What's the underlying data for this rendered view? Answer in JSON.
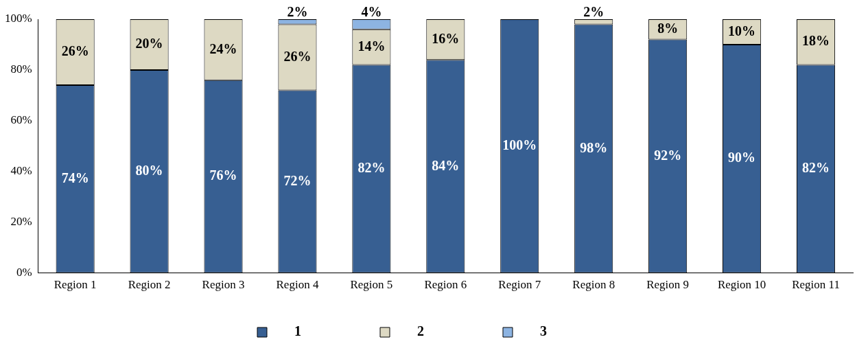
{
  "chart_data": {
    "type": "bar",
    "stacked": true,
    "legend": "bottom",
    "grid": false,
    "categories": [
      "Region 1",
      "Region 2",
      "Region 3",
      "Region 4",
      "Region 5",
      "Region 6",
      "Region 7",
      "Region 8",
      "Region 9",
      "Region 10",
      "Region 11"
    ],
    "ylim": [
      0,
      100
    ],
    "yticks": [
      {
        "value": 0,
        "label": "0%"
      },
      {
        "value": 20,
        "label": "20%"
      },
      {
        "value": 40,
        "label": "40%"
      },
      {
        "value": 60,
        "label": "60%"
      },
      {
        "value": 80,
        "label": "80%"
      },
      {
        "value": 100,
        "label": "100%"
      }
    ],
    "series": [
      {
        "name": "1",
        "color": "#375f92",
        "values": [
          74,
          80,
          76,
          72,
          82,
          84,
          100,
          98,
          92,
          90,
          82
        ],
        "value_labels": [
          "74%",
          "80%",
          "76%",
          "72%",
          "82%",
          "84%",
          "100%",
          "98%",
          "92%",
          "90%",
          "82%"
        ]
      },
      {
        "name": "2",
        "color": "#ddd9c3",
        "values": [
          26,
          20,
          24,
          26,
          14,
          16,
          null,
          2,
          8,
          10,
          18
        ],
        "value_labels": [
          "26%",
          "20%",
          "24%",
          "26%",
          "14%",
          "16%",
          null,
          "2%",
          "8%",
          "10%",
          "18%"
        ]
      },
      {
        "name": "3",
        "color": "#8db4e2",
        "values": [
          null,
          null,
          null,
          2,
          4,
          null,
          null,
          null,
          null,
          null,
          null
        ],
        "value_labels": [
          null,
          null,
          null,
          "2%",
          "4%",
          null,
          null,
          null,
          null,
          null,
          null
        ]
      }
    ]
  }
}
